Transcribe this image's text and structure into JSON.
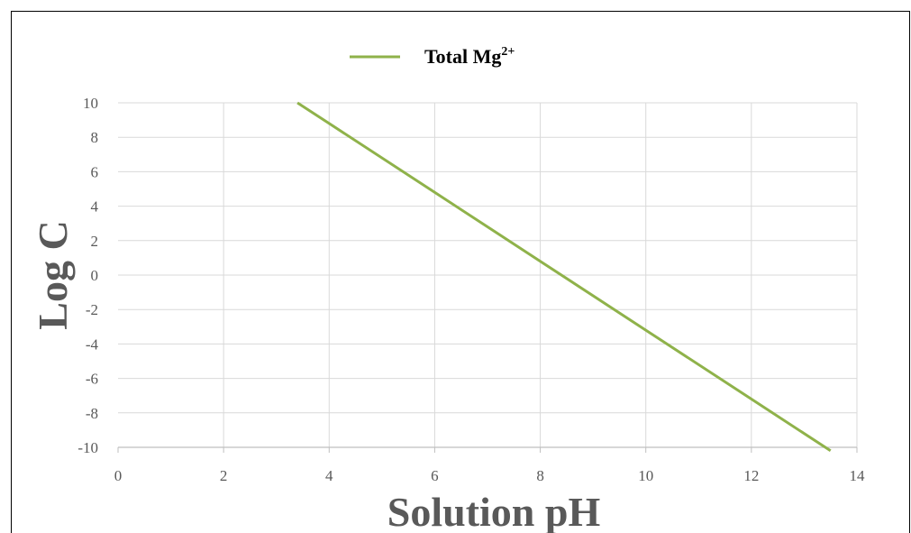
{
  "chart_data": {
    "type": "line",
    "title": "",
    "xlabel": "Solution pH",
    "ylabel": "Log C",
    "xlim": [
      0,
      14
    ],
    "ylim": [
      -10,
      10
    ],
    "x_ticks": [
      "0",
      "2",
      "4",
      "6",
      "8",
      "10",
      "12",
      "14"
    ],
    "y_ticks": [
      "10",
      "8",
      "6",
      "4",
      "2",
      "0",
      "-2",
      "-4",
      "-6",
      "-8",
      "-10"
    ],
    "grid": true,
    "legend_position": "top",
    "series": [
      {
        "name": "Total Mg",
        "name_superscript": "2+",
        "color": "#8fb24a",
        "x": [
          3.4,
          4,
          6,
          8,
          10,
          12,
          13.5
        ],
        "y": [
          10,
          8.8,
          4.8,
          0.8,
          -3.2,
          -7.2,
          -10.2
        ]
      }
    ]
  }
}
